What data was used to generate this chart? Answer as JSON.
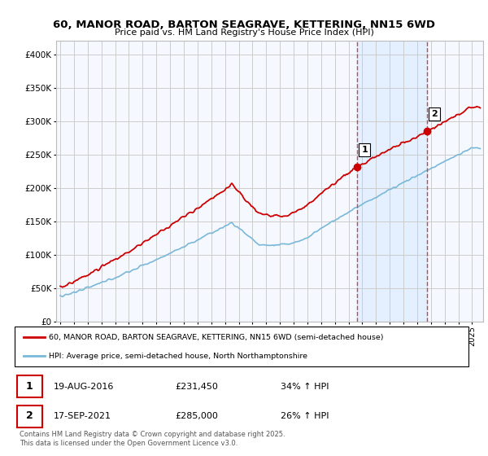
{
  "title": "60, MANOR ROAD, BARTON SEAGRAVE, KETTERING, NN15 6WD",
  "subtitle": "Price paid vs. HM Land Registry's House Price Index (HPI)",
  "legend_entry1": "60, MANOR ROAD, BARTON SEAGRAVE, KETTERING, NN15 6WD (semi-detached house)",
  "legend_entry2": "HPI: Average price, semi-detached house, North Northamptonshire",
  "footnote": "Contains HM Land Registry data © Crown copyright and database right 2025.\nThis data is licensed under the Open Government Licence v3.0.",
  "transaction1_date": "19-AUG-2016",
  "transaction1_price": "£231,450",
  "transaction1_hpi": "34% ↑ HPI",
  "transaction2_date": "17-SEP-2021",
  "transaction2_price": "£285,000",
  "transaction2_hpi": "26% ↑ HPI",
  "ylim": [
    0,
    420000
  ],
  "yticks": [
    0,
    50000,
    100000,
    150000,
    200000,
    250000,
    300000,
    350000,
    400000
  ],
  "color_red": "#cc0000",
  "color_blue": "#7ab8d8",
  "color_shade": "#ddeeff",
  "color_dashed": "#cc4444",
  "color_grid": "#cccccc",
  "color_bg": "#f5f8ff",
  "marker1_x": 2016.63,
  "marker1_y": 231450,
  "marker2_x": 2021.72,
  "marker2_y": 285000,
  "vline1_x": 2016.63,
  "vline2_x": 2021.72,
  "xlim_left": 1994.7,
  "xlim_right": 2025.8
}
